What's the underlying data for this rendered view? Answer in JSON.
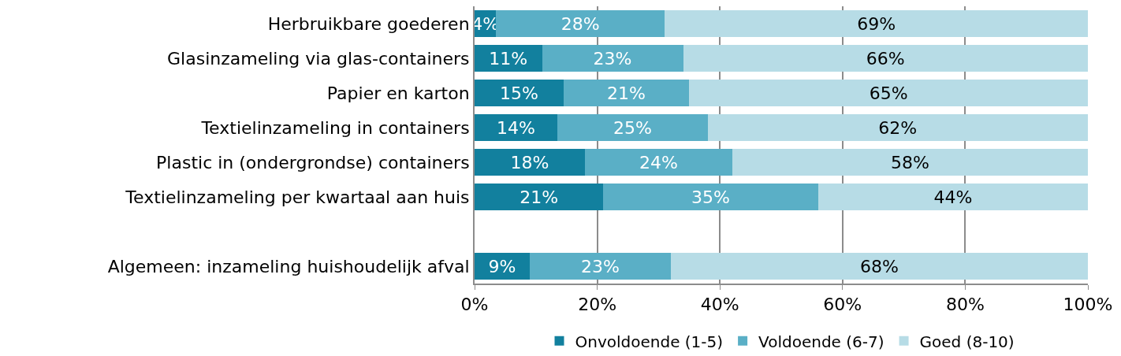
{
  "chart_data": {
    "type": "bar",
    "orientation": "horizontal",
    "stacked": true,
    "categories": [
      "Herbruikbare goederen",
      "Glasinzameling via glas-containers",
      "Papier en karton",
      "Textielinzameling in containers",
      "Plastic in (ondergrondse) containers",
      "Textielinzameling per kwartaal aan huis",
      null,
      "Algemeen: inzameling huishoudelijk afval"
    ],
    "series": [
      {
        "name": "Onvoldoende (1-5)",
        "color": "#12809e",
        "values": [
          3.5,
          11,
          14.5,
          13.5,
          18,
          21,
          null,
          9
        ],
        "value_labels": [
          "4%",
          "11%",
          "15%",
          "14%",
          "18%",
          "21%",
          null,
          "9%"
        ]
      },
      {
        "name": "Voldoende (6-7)",
        "color": "#5aafc6",
        "values": [
          27.5,
          23,
          20.5,
          24.5,
          24,
          35,
          null,
          23
        ],
        "value_labels": [
          "28%",
          "23%",
          "21%",
          "25%",
          "24%",
          "35%",
          null,
          "23%"
        ]
      },
      {
        "name": "Goed (8-10)",
        "color": "#b7dce6",
        "values": [
          69,
          66,
          65,
          62,
          58,
          44,
          null,
          68
        ],
        "value_labels": [
          "69%",
          "66%",
          "65%",
          "62%",
          "58%",
          "44%",
          null,
          "68%"
        ]
      }
    ],
    "xlim": [
      0,
      100
    ],
    "xticks": [
      {
        "value": 0,
        "label": "0%"
      },
      {
        "value": 20,
        "label": "20%"
      },
      {
        "value": 40,
        "label": "40%"
      },
      {
        "value": 60,
        "label": "60%"
      },
      {
        "value": 80,
        "label": "80%"
      },
      {
        "value": 100,
        "label": "100%"
      }
    ],
    "grid": "x",
    "legend": "bottom"
  }
}
